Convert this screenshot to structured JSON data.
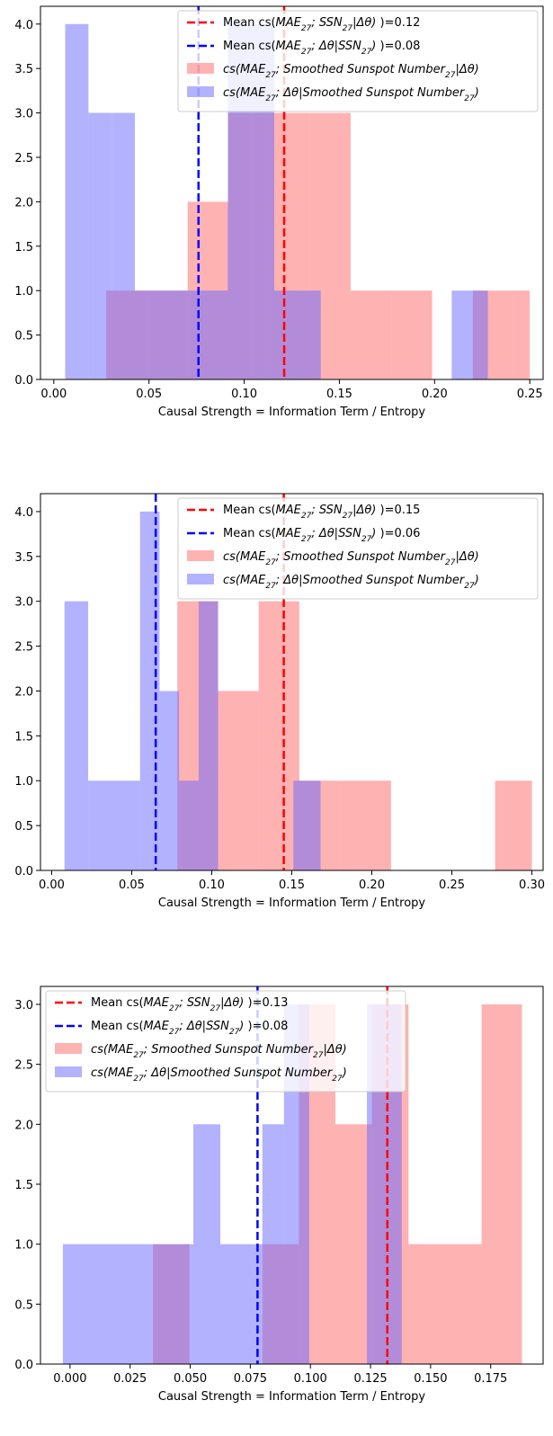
{
  "chart_data": [
    {
      "type": "histogram",
      "xlabel": "Causal Strength = Information Term / Entropy",
      "ylabel": "",
      "xlim": [
        -0.007,
        0.257
      ],
      "ylim": [
        0,
        4.2
      ],
      "xticks": [
        0.0,
        0.05,
        0.1,
        0.15,
        0.2,
        0.25
      ],
      "xtick_labels": [
        "0.00",
        "0.05",
        "0.10",
        "0.15",
        "0.20",
        "0.25"
      ],
      "yticks": [
        0.0,
        0.5,
        1.0,
        1.5,
        2.0,
        2.5,
        3.0,
        3.5,
        4.0
      ],
      "ytick_labels": [
        "0.0",
        "0.5",
        "1.0",
        "1.5",
        "2.0",
        "2.5",
        "3.0",
        "3.5",
        "4.0"
      ],
      "legend_position": "top-right",
      "series": [
        {
          "name": "cs(MAE27;Smoothed Sunspot Number27|Δθ)",
          "color": "#ff6666",
          "opacity": 0.5,
          "bins": [
            [
              0.0275,
              0.0489,
              1
            ],
            [
              0.0489,
              0.0703,
              1
            ],
            [
              0.0703,
              0.0917,
              2
            ],
            [
              0.0917,
              0.1131,
              3
            ],
            [
              0.1131,
              0.1345,
              3
            ],
            [
              0.1345,
              0.1559,
              3
            ],
            [
              0.1559,
              0.1773,
              1
            ],
            [
              0.1773,
              0.1987,
              1
            ],
            [
              0.2201,
              0.2415,
              1
            ],
            [
              0.2415,
              0.25,
              1
            ]
          ]
        },
        {
          "name": "cs(MAE27;Δθ|Smoothed Sunspot Number27)",
          "color": "#6666ff",
          "opacity": 0.5,
          "bins": [
            [
              0.006,
              0.0182,
              4
            ],
            [
              0.0182,
              0.0304,
              3
            ],
            [
              0.0304,
              0.0426,
              3
            ],
            [
              0.0426,
              0.0548,
              1
            ],
            [
              0.0548,
              0.067,
              1
            ],
            [
              0.067,
              0.0792,
              1
            ],
            [
              0.0792,
              0.0914,
              1
            ],
            [
              0.0914,
              0.1036,
              4
            ],
            [
              0.1036,
              0.1158,
              4
            ],
            [
              0.1158,
              0.128,
              1
            ],
            [
              0.128,
              0.1402,
              1
            ],
            [
              0.209,
              0.228,
              1
            ]
          ]
        }
      ],
      "vlines": [
        {
          "x": 0.076,
          "color": "#0000ff"
        },
        {
          "x": 0.121,
          "color": "#ff0000"
        }
      ],
      "legend": [
        {
          "kind": "line",
          "color": "#ff0000",
          "pre": "Mean cs(",
          "mid": "MAE",
          "sub1": "27",
          "mid2": "; SSN",
          "sub2": "27",
          "mid3": "|Δθ)",
          "post": " )=0.12"
        },
        {
          "kind": "line",
          "color": "#0000ff",
          "pre": "Mean cs(",
          "mid": "MAE",
          "sub1": "27",
          "mid2": "; Δθ|SSN",
          "sub2": "27",
          "mid3": ")",
          "post": " )=0.08"
        },
        {
          "kind": "patch",
          "color": "#ff6666",
          "pre": "",
          "mid": "cs(MAE",
          "sub1": "27",
          "mid2": "; Smoothed Sunspot Number",
          "sub2": "27",
          "mid3": "|Δθ)",
          "post": ""
        },
        {
          "kind": "patch",
          "color": "#6666ff",
          "pre": "",
          "mid": "cs(MAE",
          "sub1": "27",
          "mid2": "; Δθ|Smoothed Sunspot Number",
          "sub2": "27",
          "mid3": ")",
          "post": ""
        }
      ]
    },
    {
      "type": "histogram",
      "xlabel": "Causal Strength = Information Term / Entropy",
      "ylabel": "",
      "xlim": [
        -0.007,
        0.307
      ],
      "ylim": [
        0,
        4.2
      ],
      "xticks": [
        0.0,
        0.05,
        0.1,
        0.15,
        0.2,
        0.25,
        0.3
      ],
      "xtick_labels": [
        "0.00",
        "0.05",
        "0.10",
        "0.15",
        "0.20",
        "0.25",
        "0.30"
      ],
      "yticks": [
        0.0,
        0.5,
        1.0,
        1.5,
        2.0,
        2.5,
        3.0,
        3.5,
        4.0
      ],
      "ytick_labels": [
        "0.0",
        "0.5",
        "1.0",
        "1.5",
        "2.0",
        "2.5",
        "3.0",
        "3.5",
        "4.0"
      ],
      "legend_position": "top-right",
      "series": [
        {
          "name": "cs(MAE27;Smoothed Sunspot Number27|Δθ)",
          "color": "#ff6666",
          "opacity": 0.5,
          "bins": [
            [
              0.0785,
              0.1039,
              3
            ],
            [
              0.1039,
              0.1293,
              2
            ],
            [
              0.1293,
              0.1547,
              3
            ],
            [
              0.1547,
              0.1801,
              1
            ],
            [
              0.1801,
              0.212,
              1
            ],
            [
              0.277,
              0.3,
              1
            ]
          ]
        },
        {
          "name": "cs(MAE27;Δθ|Smoothed Sunspot Number27)",
          "color": "#6666ff",
          "opacity": 0.5,
          "bins": [
            [
              0.008,
              0.0228,
              3
            ],
            [
              0.0228,
              0.0552,
              1
            ],
            [
              0.0552,
              0.0674,
              4
            ],
            [
              0.0674,
              0.0796,
              2
            ],
            [
              0.0796,
              0.0918,
              1
            ],
            [
              0.0918,
              0.104,
              3
            ],
            [
              0.151,
              0.168,
              1
            ]
          ]
        }
      ],
      "vlines": [
        {
          "x": 0.065,
          "color": "#0000ff"
        },
        {
          "x": 0.145,
          "color": "#ff0000"
        }
      ],
      "legend": [
        {
          "kind": "line",
          "color": "#ff0000",
          "pre": "Mean cs(",
          "mid": "MAE",
          "sub1": "27",
          "mid2": "; SSN",
          "sub2": "27",
          "mid3": "|Δθ)",
          "post": " )=0.15"
        },
        {
          "kind": "line",
          "color": "#0000ff",
          "pre": "Mean cs(",
          "mid": "MAE",
          "sub1": "27",
          "mid2": "; Δθ|SSN",
          "sub2": "27",
          "mid3": ")",
          "post": " )=0.06"
        },
        {
          "kind": "patch",
          "color": "#ff6666",
          "pre": "",
          "mid": "cs(MAE",
          "sub1": "27",
          "mid2": "; Smoothed Sunspot Number",
          "sub2": "27",
          "mid3": "|Δθ)",
          "post": ""
        },
        {
          "kind": "patch",
          "color": "#6666ff",
          "pre": "",
          "mid": "cs(MAE",
          "sub1": "27",
          "mid2": "; Δθ|Smoothed Sunspot Number",
          "sub2": "27",
          "mid3": ")",
          "post": ""
        }
      ]
    },
    {
      "type": "histogram",
      "xlabel": "Causal Strength = Information Term / Entropy",
      "ylabel": "",
      "xlim": [
        -0.0123,
        0.1968
      ],
      "ylim": [
        0,
        3.15
      ],
      "xticks": [
        0.0,
        0.025,
        0.05,
        0.075,
        0.1,
        0.125,
        0.15,
        0.175
      ],
      "xtick_labels": [
        "0.000",
        "0.025",
        "0.050",
        "0.075",
        "0.100",
        "0.125",
        "0.150",
        "0.175"
      ],
      "yticks": [
        0.0,
        0.5,
        1.0,
        1.5,
        2.0,
        2.5,
        3.0
      ],
      "ytick_labels": [
        "0.0",
        "0.5",
        "1.0",
        "1.5",
        "2.0",
        "2.5",
        "3.0"
      ],
      "legend_position": "top-left",
      "series": [
        {
          "name": "cs(MAE27;Smoothed Sunspot Number27|Δθ)",
          "color": "#ff6666",
          "opacity": 0.5,
          "bins": [
            [
              0.0345,
              0.0497,
              1
            ],
            [
              0.08,
              0.0952,
              1
            ],
            [
              0.0952,
              0.1104,
              3
            ],
            [
              0.1104,
              0.1256,
              2
            ],
            [
              0.1256,
              0.1408,
              3
            ],
            [
              0.1408,
              0.156,
              1
            ],
            [
              0.156,
              0.1712,
              1
            ],
            [
              0.1712,
              0.188,
              3
            ]
          ]
        },
        {
          "name": "cs(MAE27;Δθ|Smoothed Sunspot Number27)",
          "color": "#6666ff",
          "opacity": 0.5,
          "bins": [
            [
              -0.003,
              0.0345,
              1
            ],
            [
              0.0345,
              0.0513,
              1
            ],
            [
              0.0513,
              0.0625,
              2
            ],
            [
              0.0625,
              0.07,
              1
            ],
            [
              0.07,
              0.08,
              1
            ],
            [
              0.08,
              0.089,
              2
            ],
            [
              0.089,
              0.0995,
              3
            ],
            [
              0.1235,
              0.138,
              3
            ]
          ]
        }
      ],
      "vlines": [
        {
          "x": 0.078,
          "color": "#0000ff"
        },
        {
          "x": 0.132,
          "color": "#ff0000"
        }
      ],
      "legend": [
        {
          "kind": "line",
          "color": "#ff0000",
          "pre": "Mean cs(",
          "mid": "MAE",
          "sub1": "27",
          "mid2": "; SSN",
          "sub2": "27",
          "mid3": "|Δθ)",
          "post": " )=0.13"
        },
        {
          "kind": "line",
          "color": "#0000ff",
          "pre": "Mean cs(",
          "mid": "MAE",
          "sub1": "27",
          "mid2": "; Δθ|SSN",
          "sub2": "27",
          "mid3": ")",
          "post": " )=0.08"
        },
        {
          "kind": "patch",
          "color": "#ff6666",
          "pre": "",
          "mid": "cs(MAE",
          "sub1": "27",
          "mid2": "; Smoothed Sunspot Number",
          "sub2": "27",
          "mid3": "|Δθ)",
          "post": ""
        },
        {
          "kind": "patch",
          "color": "#6666ff",
          "pre": "",
          "mid": "cs(MAE",
          "sub1": "27",
          "mid2": "; Δθ|Smoothed Sunspot Number",
          "sub2": "27",
          "mid3": ")",
          "post": ""
        }
      ]
    }
  ]
}
